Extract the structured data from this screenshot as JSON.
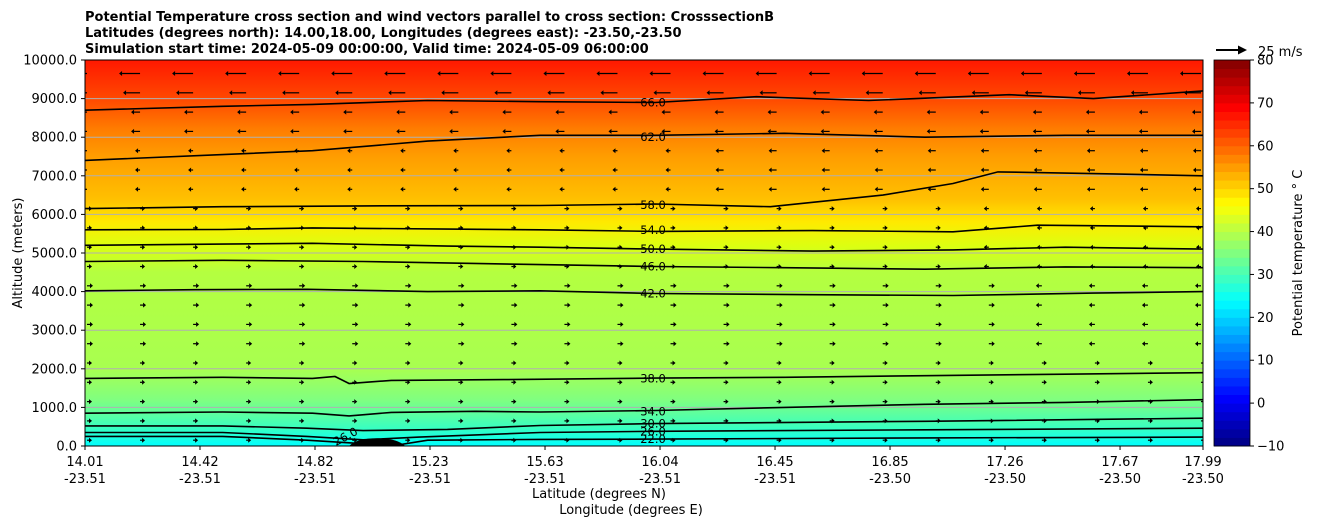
{
  "chart_data": {
    "type": "contour",
    "title_lines": [
      "Potential Temperature cross section and wind vectors parallel to cross section: CrosssectionB",
      "Latitudes (degrees north): 14.00,18.00, Longitudes (degrees east): -23.50,-23.50",
      "Simulation start time: 2024-05-09 00:00:00, Valid time: 2024-05-09 06:00:00"
    ],
    "xlabel_lines": [
      "Latitude (degrees N)",
      "Longitude (degrees E)"
    ],
    "ylabel": "Altitude (meters)",
    "x_ticks": [
      {
        "lat": "14.01",
        "lon": "-23.51"
      },
      {
        "lat": "14.42",
        "lon": "-23.51"
      },
      {
        "lat": "14.82",
        "lon": "-23.51"
      },
      {
        "lat": "15.23",
        "lon": "-23.51"
      },
      {
        "lat": "15.63",
        "lon": "-23.51"
      },
      {
        "lat": "16.04",
        "lon": "-23.51"
      },
      {
        "lat": "16.45",
        "lon": "-23.51"
      },
      {
        "lat": "16.85",
        "lon": "-23.50"
      },
      {
        "lat": "17.26",
        "lon": "-23.50"
      },
      {
        "lat": "17.67",
        "lon": "-23.50"
      },
      {
        "lat": "17.99",
        "lon": "-23.50"
      }
    ],
    "xlim": [
      14.01,
      17.99
    ],
    "y_ticks": [
      "0.0",
      "1000.0",
      "2000.0",
      "3000.0",
      "4000.0",
      "5000.0",
      "6000.0",
      "7000.0",
      "8000.0",
      "9000.0",
      "10000.0"
    ],
    "ylim": [
      0,
      10000
    ],
    "grid": "horizontal",
    "colorbar": {
      "label": "Potential temperature $^\\circ$C",
      "label_display": "Potential temperature ° C",
      "range": [
        -10,
        80
      ],
      "ticks": [
        "−10",
        "0",
        "10",
        "20",
        "30",
        "40",
        "50",
        "60",
        "70",
        "80"
      ],
      "colormap": "jet"
    },
    "quiver_key": {
      "label": "25 m/s",
      "speed": 25
    },
    "contour_labels": [
      {
        "value": "66.0",
        "altitude": 8900
      },
      {
        "value": "62.0",
        "altitude": 8000
      },
      {
        "value": "58.0",
        "altitude": 6250
      },
      {
        "value": "54.0",
        "altitude": 5600
      },
      {
        "value": "50.0",
        "altitude": 5100
      },
      {
        "value": "46.0",
        "altitude": 4650
      },
      {
        "value": "42.0",
        "altitude": 3950
      },
      {
        "value": "38.0",
        "altitude": 1750
      },
      {
        "value": "34.0",
        "altitude": 900
      },
      {
        "value": "30.0",
        "altitude": 580
      },
      {
        "value": "26.0",
        "altitude": 380
      },
      {
        "value": "22.0",
        "altitude": 180
      }
    ],
    "bottom_contour_label": "26.0",
    "contours": [
      {
        "value": 22,
        "points": [
          [
            14.01,
            250
          ],
          [
            14.5,
            250
          ],
          [
            14.8,
            150
          ],
          [
            15.0,
            60
          ],
          [
            15.1,
            0
          ],
          [
            15.23,
            150
          ],
          [
            15.63,
            170
          ],
          [
            16.04,
            180
          ],
          [
            17.0,
            210
          ],
          [
            17.99,
            230
          ]
        ]
      },
      {
        "value": 26,
        "points": [
          [
            14.01,
            350
          ],
          [
            14.5,
            350
          ],
          [
            14.8,
            250
          ],
          [
            15.0,
            160
          ],
          [
            15.2,
            230
          ],
          [
            15.63,
            350
          ],
          [
            16.04,
            380
          ],
          [
            17.0,
            420
          ],
          [
            17.99,
            460
          ]
        ]
      },
      {
        "value": 30,
        "points": [
          [
            14.01,
            520
          ],
          [
            14.5,
            520
          ],
          [
            14.8,
            460
          ],
          [
            15.0,
            400
          ],
          [
            15.3,
            430
          ],
          [
            15.63,
            530
          ],
          [
            16.04,
            580
          ],
          [
            17.0,
            640
          ],
          [
            17.99,
            720
          ]
        ]
      },
      {
        "value": 34,
        "points": [
          [
            14.01,
            850
          ],
          [
            14.5,
            880
          ],
          [
            14.82,
            850
          ],
          [
            14.95,
            780
          ],
          [
            15.1,
            870
          ],
          [
            15.4,
            900
          ],
          [
            15.63,
            880
          ],
          [
            16.04,
            920
          ],
          [
            16.5,
            1000
          ],
          [
            17.0,
            1080
          ],
          [
            17.5,
            1130
          ],
          [
            17.99,
            1200
          ]
        ]
      },
      {
        "value": 38,
        "points": [
          [
            14.01,
            1750
          ],
          [
            14.5,
            1780
          ],
          [
            14.82,
            1750
          ],
          [
            14.9,
            1800
          ],
          [
            14.95,
            1620
          ],
          [
            15.1,
            1700
          ],
          [
            15.5,
            1720
          ],
          [
            16.04,
            1760
          ],
          [
            16.5,
            1780
          ],
          [
            17.0,
            1820
          ],
          [
            17.5,
            1860
          ],
          [
            17.99,
            1900
          ]
        ]
      },
      {
        "value": 42,
        "points": [
          [
            14.01,
            4020
          ],
          [
            14.4,
            4050
          ],
          [
            14.8,
            4060
          ],
          [
            15.23,
            4000
          ],
          [
            15.63,
            4020
          ],
          [
            16.04,
            3950
          ],
          [
            16.6,
            3920
          ],
          [
            17.1,
            3900
          ],
          [
            17.6,
            3960
          ],
          [
            17.99,
            4000
          ]
        ]
      },
      {
        "value": 46,
        "points": [
          [
            14.01,
            4780
          ],
          [
            14.5,
            4810
          ],
          [
            15.0,
            4780
          ],
          [
            15.63,
            4700
          ],
          [
            16.04,
            4650
          ],
          [
            16.5,
            4620
          ],
          [
            17.0,
            4580
          ],
          [
            17.5,
            4640
          ],
          [
            17.99,
            4620
          ]
        ]
      },
      {
        "value": 50,
        "points": [
          [
            14.01,
            5200
          ],
          [
            14.5,
            5230
          ],
          [
            14.82,
            5250
          ],
          [
            15.3,
            5180
          ],
          [
            15.63,
            5150
          ],
          [
            16.04,
            5100
          ],
          [
            16.6,
            5050
          ],
          [
            17.1,
            5080
          ],
          [
            17.5,
            5150
          ],
          [
            17.99,
            5100
          ]
        ]
      },
      {
        "value": 54,
        "points": [
          [
            14.01,
            5600
          ],
          [
            14.5,
            5610
          ],
          [
            14.82,
            5650
          ],
          [
            15.3,
            5620
          ],
          [
            15.63,
            5600
          ],
          [
            16.04,
            5560
          ],
          [
            16.6,
            5580
          ],
          [
            17.1,
            5550
          ],
          [
            17.4,
            5720
          ],
          [
            17.99,
            5680
          ]
        ]
      },
      {
        "value": 58,
        "points": [
          [
            14.01,
            6150
          ],
          [
            14.5,
            6200
          ],
          [
            15.0,
            6220
          ],
          [
            15.63,
            6230
          ],
          [
            16.04,
            6270
          ],
          [
            16.45,
            6200
          ],
          [
            16.85,
            6500
          ],
          [
            17.1,
            6800
          ],
          [
            17.26,
            7100
          ],
          [
            17.67,
            7050
          ],
          [
            17.99,
            7000
          ]
        ]
      },
      {
        "value": 62,
        "points": [
          [
            14.01,
            7400
          ],
          [
            14.5,
            7550
          ],
          [
            14.82,
            7650
          ],
          [
            15.23,
            7900
          ],
          [
            15.63,
            8050
          ],
          [
            16.04,
            8050
          ],
          [
            16.5,
            8100
          ],
          [
            17.0,
            8000
          ],
          [
            17.5,
            8050
          ],
          [
            17.99,
            8050
          ]
        ]
      },
      {
        "value": 66,
        "points": [
          [
            14.01,
            8700
          ],
          [
            14.5,
            8800
          ],
          [
            14.82,
            8850
          ],
          [
            15.23,
            8950
          ],
          [
            15.63,
            8920
          ],
          [
            16.04,
            8900
          ],
          [
            16.4,
            9050
          ],
          [
            16.8,
            8950
          ],
          [
            17.3,
            9100
          ],
          [
            17.6,
            9000
          ],
          [
            17.99,
            9200
          ]
        ]
      }
    ],
    "terrain_bump": {
      "x_range": [
        14.95,
        15.15
      ],
      "peak_altitude": 200
    }
  }
}
